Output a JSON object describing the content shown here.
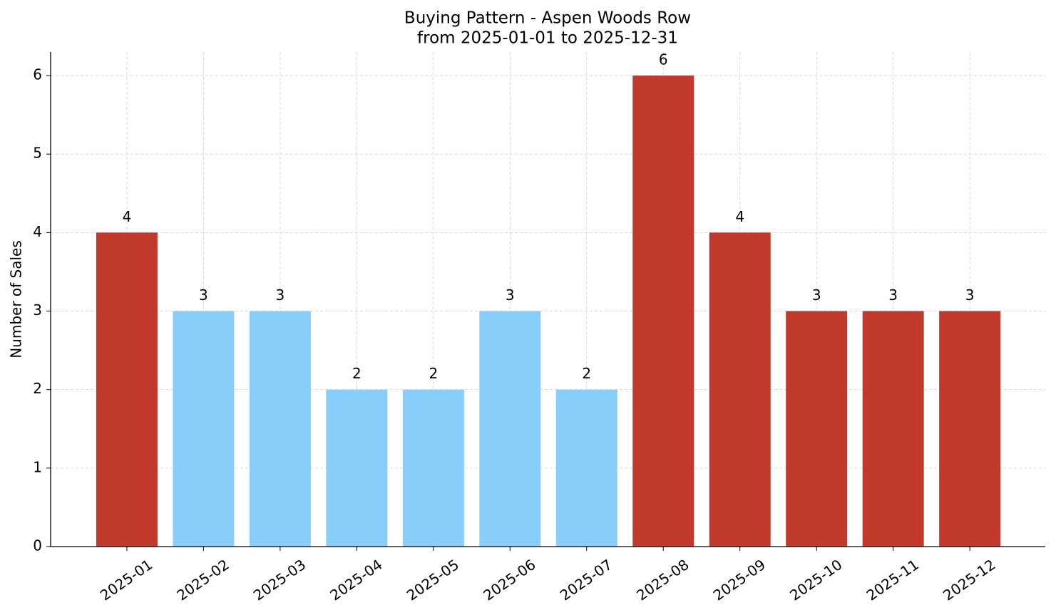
{
  "chart_data": {
    "type": "bar",
    "title": "Buying Pattern - Aspen Woods Row",
    "subtitle": "from 2025-01-01 to 2025-12-31",
    "y_label": "Number of Sales",
    "categories": [
      "2025-01",
      "2025-02",
      "2025-03",
      "2025-04",
      "2025-05",
      "2025-06",
      "2025-07",
      "2025-08",
      "2025-09",
      "2025-10",
      "2025-11",
      "2025-12"
    ],
    "values": [
      4,
      3,
      3,
      2,
      2,
      3,
      2,
      6,
      4,
      3,
      3,
      3
    ],
    "colors": [
      "#c0392b",
      "#87cefa",
      "#87cefa",
      "#87cefa",
      "#87cefa",
      "#87cefa",
      "#87cefa",
      "#c0392b",
      "#c0392b",
      "#c0392b",
      "#c0392b",
      "#c0392b"
    ],
    "ylim": [
      0,
      6.3
    ],
    "yticks": [
      0,
      1,
      2,
      3,
      4,
      5,
      6
    ],
    "grid": true
  }
}
